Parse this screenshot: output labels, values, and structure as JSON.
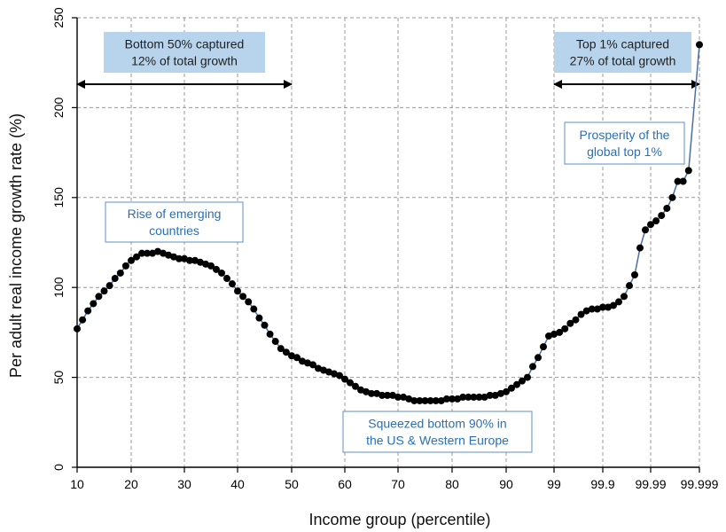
{
  "chart_data": {
    "type": "line",
    "xlabel": "Income group (percentile)",
    "ylabel": "Per adult real income growth rate (%)",
    "ylim": [
      0,
      250
    ],
    "yticks": [
      0,
      50,
      100,
      150,
      200,
      250
    ],
    "xtick_labels": [
      "10",
      "20",
      "30",
      "40",
      "50",
      "60",
      "70",
      "80",
      "90",
      "99",
      "99.9",
      "99.99",
      "99.999"
    ],
    "grid": true,
    "series": [
      {
        "color": "#000000",
        "points": [
          {
            "x": 10,
            "y": 77
          },
          {
            "x": 11,
            "y": 82
          },
          {
            "x": 12,
            "y": 87
          },
          {
            "x": 13,
            "y": 91
          },
          {
            "x": 14,
            "y": 95
          },
          {
            "x": 15,
            "y": 98
          },
          {
            "x": 16,
            "y": 101
          },
          {
            "x": 17,
            "y": 105
          },
          {
            "x": 18,
            "y": 108
          },
          {
            "x": 19,
            "y": 112
          },
          {
            "x": 20,
            "y": 115
          },
          {
            "x": 21,
            "y": 117
          },
          {
            "x": 22,
            "y": 119
          },
          {
            "x": 23,
            "y": 119
          },
          {
            "x": 24,
            "y": 119
          },
          {
            "x": 25,
            "y": 120
          },
          {
            "x": 26,
            "y": 119
          },
          {
            "x": 27,
            "y": 118
          },
          {
            "x": 28,
            "y": 117
          },
          {
            "x": 29,
            "y": 116
          },
          {
            "x": 30,
            "y": 116
          },
          {
            "x": 31,
            "y": 115
          },
          {
            "x": 32,
            "y": 115
          },
          {
            "x": 33,
            "y": 114
          },
          {
            "x": 34,
            "y": 113
          },
          {
            "x": 35,
            "y": 112
          },
          {
            "x": 36,
            "y": 110
          },
          {
            "x": 37,
            "y": 108
          },
          {
            "x": 38,
            "y": 105
          },
          {
            "x": 39,
            "y": 102
          },
          {
            "x": 40,
            "y": 98
          },
          {
            "x": 41,
            "y": 95
          },
          {
            "x": 42,
            "y": 92
          },
          {
            "x": 43,
            "y": 88
          },
          {
            "x": 44,
            "y": 83
          },
          {
            "x": 45,
            "y": 79
          },
          {
            "x": 46,
            "y": 74
          },
          {
            "x": 47,
            "y": 70
          },
          {
            "x": 48,
            "y": 66
          },
          {
            "x": 49,
            "y": 64
          },
          {
            "x": 50,
            "y": 62
          },
          {
            "x": 51,
            "y": 61
          },
          {
            "x": 52,
            "y": 59
          },
          {
            "x": 53,
            "y": 58
          },
          {
            "x": 54,
            "y": 57
          },
          {
            "x": 55,
            "y": 55
          },
          {
            "x": 56,
            "y": 54
          },
          {
            "x": 57,
            "y": 53
          },
          {
            "x": 58,
            "y": 52
          },
          {
            "x": 59,
            "y": 51
          },
          {
            "x": 60,
            "y": 49
          },
          {
            "x": 61,
            "y": 47
          },
          {
            "x": 62,
            "y": 45
          },
          {
            "x": 63,
            "y": 43
          },
          {
            "x": 64,
            "y": 42
          },
          {
            "x": 65,
            "y": 41
          },
          {
            "x": 66,
            "y": 41
          },
          {
            "x": 67,
            "y": 40
          },
          {
            "x": 68,
            "y": 40
          },
          {
            "x": 69,
            "y": 40
          },
          {
            "x": 70,
            "y": 39
          },
          {
            "x": 71,
            "y": 39
          },
          {
            "x": 72,
            "y": 38
          },
          {
            "x": 73,
            "y": 37
          },
          {
            "x": 74,
            "y": 37
          },
          {
            "x": 75,
            "y": 37
          },
          {
            "x": 76,
            "y": 37
          },
          {
            "x": 77,
            "y": 37
          },
          {
            "x": 78,
            "y": 37
          },
          {
            "x": 79,
            "y": 38
          },
          {
            "x": 80,
            "y": 38
          },
          {
            "x": 81,
            "y": 38
          },
          {
            "x": 82,
            "y": 39
          },
          {
            "x": 83,
            "y": 39
          },
          {
            "x": 84,
            "y": 39
          },
          {
            "x": 85,
            "y": 39
          },
          {
            "x": 86,
            "y": 39
          },
          {
            "x": 87,
            "y": 40
          },
          {
            "x": 88,
            "y": 40
          },
          {
            "x": 89,
            "y": 41
          },
          {
            "x": 90,
            "y": 42
          },
          {
            "x": 91,
            "y": 44
          },
          {
            "x": 92,
            "y": 46
          },
          {
            "x": 93,
            "y": 48
          },
          {
            "x": 94,
            "y": 50
          },
          {
            "x": 95,
            "y": 56
          },
          {
            "x": 96,
            "y": 61
          },
          {
            "x": 97,
            "y": 67
          },
          {
            "x": 98,
            "y": 73
          },
          {
            "x": 99,
            "y": 74
          },
          {
            "x": 99.1,
            "y": 75
          },
          {
            "x": 99.2,
            "y": 77
          },
          {
            "x": 99.3,
            "y": 80
          },
          {
            "x": 99.4,
            "y": 82
          },
          {
            "x": 99.5,
            "y": 85
          },
          {
            "x": 99.6,
            "y": 87
          },
          {
            "x": 99.7,
            "y": 88
          },
          {
            "x": 99.8,
            "y": 88
          },
          {
            "x": 99.9,
            "y": 89
          },
          {
            "x": 99.91,
            "y": 89
          },
          {
            "x": 99.92,
            "y": 90
          },
          {
            "x": 99.93,
            "y": 92
          },
          {
            "x": 99.94,
            "y": 95
          },
          {
            "x": 99.95,
            "y": 101
          },
          {
            "x": 99.96,
            "y": 107
          },
          {
            "x": 99.97,
            "y": 122
          },
          {
            "x": 99.98,
            "y": 132
          },
          {
            "x": 99.99,
            "y": 135
          },
          {
            "x": 99.991,
            "y": 137
          },
          {
            "x": 99.992,
            "y": 140
          },
          {
            "x": 99.993,
            "y": 144
          },
          {
            "x": 99.994,
            "y": 150
          },
          {
            "x": 99.995,
            "y": 159
          },
          {
            "x": 99.996,
            "y": 159
          },
          {
            "x": 99.997,
            "y": 165
          },
          {
            "x": 99.999,
            "y": 235
          }
        ]
      }
    ],
    "annotations": [
      {
        "style": "blue-box",
        "lines": [
          "Bottom 50% captured",
          "12% of total growth"
        ]
      },
      {
        "style": "blue-box",
        "lines": [
          "Top 1% captured",
          "27% of total growth"
        ]
      },
      {
        "style": "white-box",
        "lines": [
          "Rise of emerging",
          "countries"
        ]
      },
      {
        "style": "white-box",
        "lines": [
          "Squeezed bottom 90% in",
          "the US & Western Europe"
        ]
      },
      {
        "style": "white-box",
        "lines": [
          "Prosperity of the",
          "global top 1%"
        ]
      }
    ],
    "arrows": [
      {
        "from_x": 10,
        "to_x": 50,
        "y": 213
      },
      {
        "from_x": 99,
        "to_x": 99.999,
        "y": 213
      }
    ],
    "colors": {
      "line": "#000000",
      "grid": "#9a9a9a",
      "blue_box_fill": "#b8d4ec",
      "white_box_border": "#5b8fc9",
      "white_box_text": "#2a6fb5"
    }
  }
}
